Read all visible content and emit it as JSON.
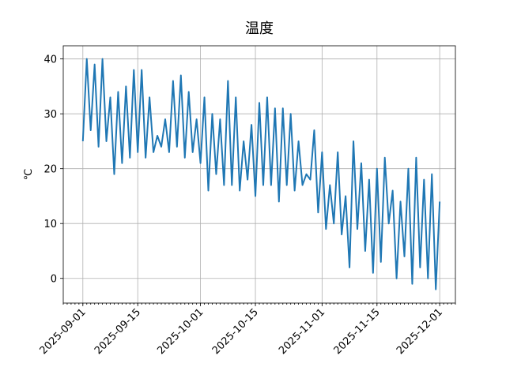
{
  "chart_data": {
    "type": "line",
    "title": "温度",
    "y_label": "℃",
    "x": [
      "2025-09-01",
      "2025-09-02",
      "2025-09-03",
      "2025-09-04",
      "2025-09-05",
      "2025-09-06",
      "2025-09-07",
      "2025-09-08",
      "2025-09-09",
      "2025-09-10",
      "2025-09-11",
      "2025-09-12",
      "2025-09-13",
      "2025-09-14",
      "2025-09-15",
      "2025-09-16",
      "2025-09-17",
      "2025-09-18",
      "2025-09-19",
      "2025-09-20",
      "2025-09-21",
      "2025-09-22",
      "2025-09-23",
      "2025-09-24",
      "2025-09-25",
      "2025-09-26",
      "2025-09-27",
      "2025-09-28",
      "2025-09-29",
      "2025-09-30",
      "2025-10-01",
      "2025-10-02",
      "2025-10-03",
      "2025-10-04",
      "2025-10-05",
      "2025-10-06",
      "2025-10-07",
      "2025-10-08",
      "2025-10-09",
      "2025-10-10",
      "2025-10-11",
      "2025-10-12",
      "2025-10-13",
      "2025-10-14",
      "2025-10-15",
      "2025-10-16",
      "2025-10-17",
      "2025-10-18",
      "2025-10-19",
      "2025-10-20",
      "2025-10-21",
      "2025-10-22",
      "2025-10-23",
      "2025-10-24",
      "2025-10-25",
      "2025-10-26",
      "2025-10-27",
      "2025-10-28",
      "2025-10-29",
      "2025-10-30",
      "2025-10-31",
      "2025-11-01",
      "2025-11-02",
      "2025-11-03",
      "2025-11-04",
      "2025-11-05",
      "2025-11-06",
      "2025-11-07",
      "2025-11-08",
      "2025-11-09",
      "2025-11-10",
      "2025-11-11",
      "2025-11-12",
      "2025-11-13",
      "2025-11-14",
      "2025-11-15",
      "2025-11-16",
      "2025-11-17",
      "2025-11-18",
      "2025-11-19",
      "2025-11-20",
      "2025-11-21",
      "2025-11-22",
      "2025-11-23",
      "2025-11-24",
      "2025-11-25",
      "2025-11-26",
      "2025-11-27",
      "2025-11-28",
      "2025-11-29",
      "2025-11-30",
      "2025-12-01"
    ],
    "series": [
      {
        "name": "温度",
        "color": "#1f77b4",
        "values": [
          25,
          40,
          27,
          39,
          24,
          40,
          25,
          33,
          19,
          34,
          21,
          35,
          22,
          38,
          23,
          38,
          22,
          33,
          23,
          26,
          24,
          29,
          23,
          36,
          24,
          37,
          22,
          34,
          23,
          29,
          21,
          33,
          16,
          30,
          19,
          29,
          17,
          36,
          17,
          33,
          16,
          25,
          18,
          28,
          15,
          32,
          17,
          33,
          17,
          31,
          14,
          31,
          17,
          30,
          16,
          25,
          17,
          19,
          18,
          27,
          12,
          23,
          9,
          17,
          10,
          23,
          8,
          15,
          2,
          25,
          9,
          21,
          5,
          18,
          1,
          20,
          3,
          22,
          10,
          16,
          0,
          14,
          4,
          20,
          -1,
          22,
          2,
          18,
          0,
          19,
          -2,
          14
        ]
      }
    ],
    "xlim": [
      "2025-08-27",
      "2025-12-05"
    ],
    "xticks": [
      "2025-09-01",
      "2025-09-15",
      "2025-10-01",
      "2025-10-15",
      "2025-11-01",
      "2025-11-15",
      "2025-12-01"
    ],
    "ylim": [
      -4.5,
      42.4
    ],
    "yticks": [
      0,
      10,
      20,
      30,
      40
    ],
    "grid": true,
    "legend": false
  }
}
